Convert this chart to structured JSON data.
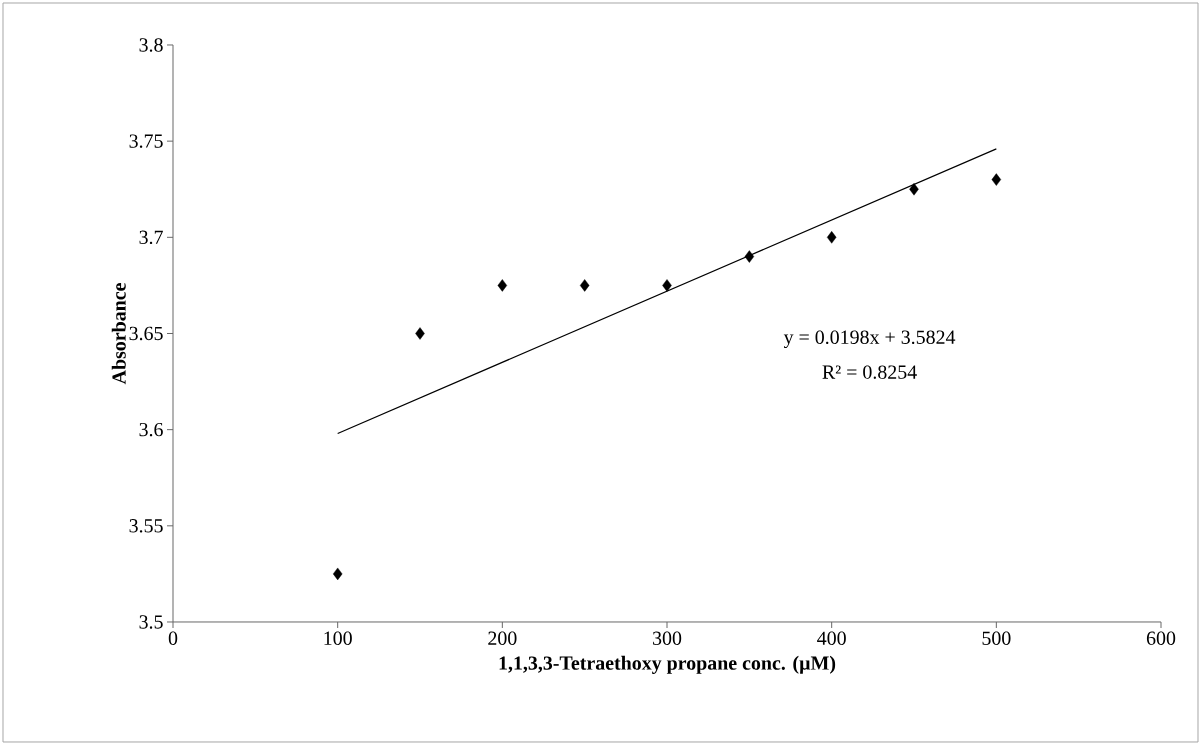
{
  "chart_data": {
    "type": "scatter",
    "xlabel": "1,1,3,3-Tetraethoxy propane conc. (µM)",
    "ylabel": "Absorbance",
    "series": [
      {
        "color": "#000000",
        "marker": "diamond",
        "x": [
          100,
          150,
          200,
          250,
          300,
          350,
          400,
          450,
          500
        ],
        "values": [
          3.525,
          3.65,
          3.675,
          3.675,
          3.675,
          3.69,
          3.7,
          3.725,
          3.73
        ]
      },
      {
        "type": "line",
        "color": "#000000",
        "marker": "none",
        "line_style": "solid",
        "x": [
          100,
          500
        ],
        "values": [
          3.598,
          3.746
        ]
      }
    ],
    "xlim": [
      0,
      600
    ],
    "ylim": [
      3.5,
      3.8
    ],
    "xticks": [
      0,
      100,
      200,
      300,
      400,
      500,
      600
    ],
    "yticks": [
      3.5,
      3.55,
      3.6,
      3.65,
      3.7,
      3.75,
      3.8
    ],
    "annotations": [
      "y = 0.0198x + 3.5824",
      "R² = 0.8254"
    ],
    "grid": false
  }
}
